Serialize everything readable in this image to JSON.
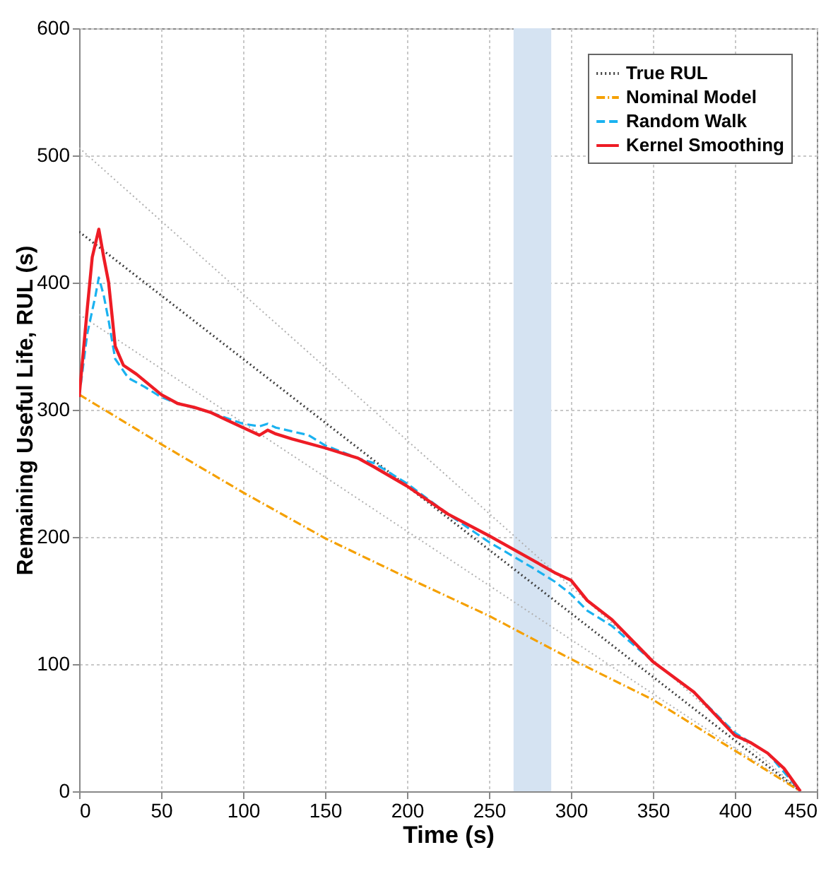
{
  "chart_data": {
    "type": "line",
    "xlabel": "Time (s)",
    "ylabel": "Remaining Useful Life, RUL (s)",
    "xlim": [
      0,
      450
    ],
    "ylim": [
      0,
      600
    ],
    "xticks": [
      0,
      50,
      100,
      150,
      200,
      250,
      300,
      350,
      400,
      450
    ],
    "yticks": [
      0,
      100,
      200,
      300,
      400,
      500,
      600
    ],
    "grid": true,
    "legend": "top right",
    "bands": [
      {
        "axis": "x",
        "from": 265,
        "to": 288,
        "color": "#d5e3f2"
      }
    ],
    "series": [
      {
        "color": "#b0b0b0",
        "line_style": "dotted",
        "x": [
          0,
          440
        ],
        "values": [
          506,
          0
        ]
      },
      {
        "color": "#b0b0b0",
        "line_style": "dotted",
        "x": [
          0,
          440
        ],
        "values": [
          375,
          0
        ]
      },
      {
        "name": "True RUL",
        "color": "#404040",
        "line_style": "dotted",
        "x": [
          0,
          440
        ],
        "values": [
          440,
          0
        ]
      },
      {
        "name": "Nominal Model",
        "color": "#f5a000",
        "line_style": "dashdot",
        "x": [
          0,
          50,
          100,
          150,
          200,
          250,
          300,
          350,
          400,
          440
        ],
        "values": [
          312,
          273,
          235,
          199,
          168,
          138,
          104,
          72,
          32,
          0
        ]
      },
      {
        "name": "Random Walk",
        "color": "#1ab2f0",
        "line_style": "dashed",
        "x": [
          0,
          5,
          10,
          12,
          15,
          18,
          22,
          30,
          40,
          50,
          60,
          80,
          100,
          110,
          115,
          120,
          140,
          150,
          170,
          180,
          200,
          225,
          250,
          275,
          290,
          300,
          310,
          325,
          350,
          375,
          400,
          420,
          440
        ],
        "values": [
          310,
          360,
          390,
          404,
          390,
          370,
          340,
          325,
          318,
          310,
          305,
          298,
          289,
          287,
          289,
          286,
          280,
          272,
          262,
          258,
          242,
          218,
          196,
          177,
          165,
          155,
          142,
          130,
          102,
          78,
          46,
          30,
          0
        ]
      },
      {
        "name": "Kernel Smoothing",
        "color": "#ee1c25",
        "line_style": "solid",
        "x": [
          0,
          5,
          8,
          12,
          15,
          18,
          22,
          27,
          35,
          50,
          60,
          70,
          80,
          90,
          100,
          110,
          115,
          120,
          130,
          150,
          170,
          180,
          200,
          225,
          250,
          275,
          290,
          300,
          310,
          325,
          350,
          375,
          400,
          410,
          420,
          430,
          440
        ],
        "values": [
          310,
          380,
          420,
          442,
          420,
          400,
          350,
          335,
          328,
          312,
          305,
          302,
          298,
          292,
          286,
          280,
          284,
          281,
          277,
          270,
          262,
          255,
          240,
          218,
          201,
          183,
          172,
          166,
          150,
          135,
          102,
          78,
          44,
          38,
          30,
          18,
          0
        ]
      }
    ]
  }
}
